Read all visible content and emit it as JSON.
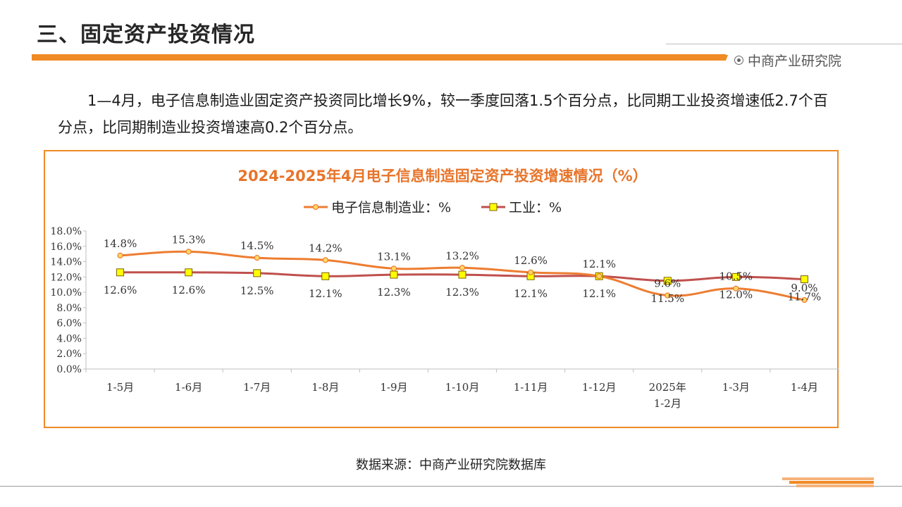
{
  "header": {
    "title": "三、固定资产投资情况",
    "brand": "中商产业研究院"
  },
  "paragraph": {
    "text": "1—4月，电子信息制造业固定资产投资同比增长9%，较一季度回落1.5个百分点，比同期工业投资增速低2.7个百分点，比同期制造业投资增速高0.2个百分点。"
  },
  "source": {
    "text": "数据来源：中商产业研究院数据库"
  },
  "watermark": {
    "text": "中商产业研究院"
  },
  "colors": {
    "accent": "#f08a24",
    "series1": "#ed7d31",
    "series2": "#c0504d",
    "series1_marker": "#ffd966",
    "series2_marker": "#ffff00"
  },
  "chart_data": {
    "type": "line",
    "title": "2024-2025年4月电子信息制造固定资产投资增速情况（%）",
    "categories": [
      "1-5月",
      "1-6月",
      "1-7月",
      "1-8月",
      "1-9月",
      "1-10月",
      "1-11月",
      "1-12月",
      "2025年\n1-2月",
      "1-3月",
      "1-4月"
    ],
    "series": [
      {
        "name": "电子信息制造业：%",
        "values": [
          14.8,
          15.3,
          14.5,
          14.2,
          13.1,
          13.2,
          12.6,
          12.1,
          9.6,
          10.5,
          9.0
        ],
        "labels": [
          "14.8%",
          "15.3%",
          "14.5%",
          "14.2%",
          "13.1%",
          "13.2%",
          "12.6%",
          "12.1%",
          "9.6%",
          "10.5%",
          "9.0%"
        ]
      },
      {
        "name": "工业：%",
        "values": [
          12.6,
          12.6,
          12.5,
          12.1,
          12.3,
          12.3,
          12.1,
          12.1,
          11.5,
          12.0,
          11.7
        ],
        "labels": [
          "12.6%",
          "12.6%",
          "12.5%",
          "12.1%",
          "12.3%",
          "12.3%",
          "12.1%",
          "12.1%",
          "11.5%",
          "12.0%",
          "11.7%"
        ]
      }
    ],
    "yticks": [
      "0.0%",
      "2.0%",
      "4.0%",
      "6.0%",
      "8.0%",
      "10.0%",
      "12.0%",
      "14.0%",
      "16.0%",
      "18.0%"
    ],
    "ylim": [
      0,
      18
    ],
    "legend": "top"
  }
}
